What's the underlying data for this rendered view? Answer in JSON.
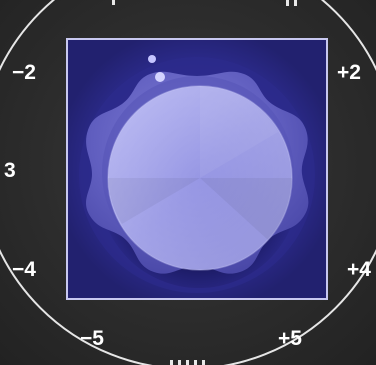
{
  "scale": {
    "minus_two": "−2",
    "plus_two": "+2",
    "three": "3",
    "minus_four": "−4",
    "plus_four": "+4",
    "minus_five": "−5",
    "plus_five": "+5"
  },
  "knob": {
    "indicator_dots": 2
  },
  "colors": {
    "background": "#2b2b2b",
    "ring": "#e6e6e6",
    "panel": "#24237c",
    "panel_border": "#c8c8f0",
    "knob_cap": "#9a9ae6",
    "knob_skirt": "#6a68c8"
  }
}
